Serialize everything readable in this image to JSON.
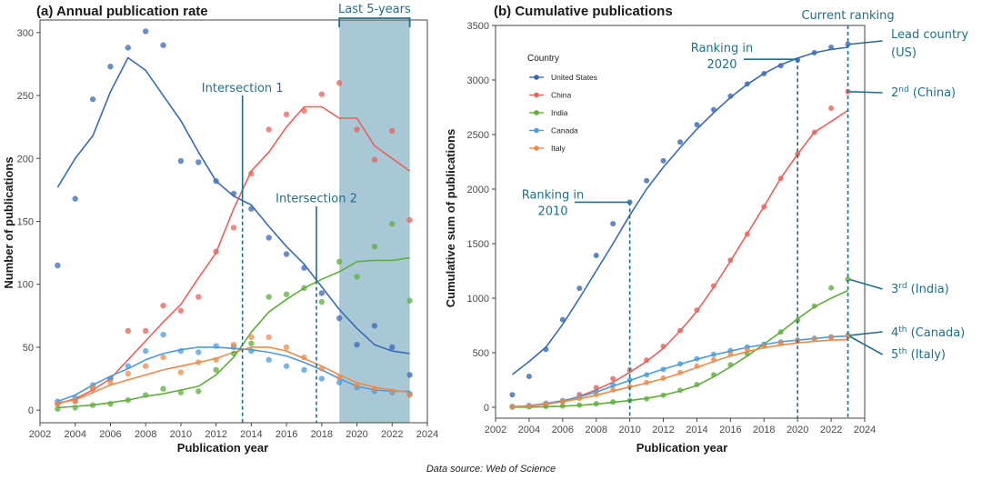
{
  "source": "Data source: Web of Science",
  "colors": {
    "United States": "#3a68b8",
    "China": "#e8605a",
    "India": "#5fae3a",
    "Canada": "#4a9be0",
    "Italy": "#ee8a48",
    "annotation": "#1f6f8b",
    "shade": "#a9c8d6"
  },
  "chart_data": [
    {
      "type": "scatter",
      "title": "(a) Annual publication rate",
      "xlabel": "Publication year",
      "ylabel": "Number of publications",
      "xlim": [
        2002,
        2024
      ],
      "ylim": [
        -10,
        310
      ],
      "xticks": [
        2002,
        2004,
        2006,
        2008,
        2010,
        2012,
        2014,
        2016,
        2018,
        2020,
        2022,
        2024
      ],
      "yticks": [
        0,
        50,
        100,
        150,
        200,
        250,
        300
      ],
      "grid": false,
      "x": [
        2003,
        2004,
        2005,
        2006,
        2007,
        2008,
        2009,
        2010,
        2011,
        2012,
        2013,
        2014,
        2015,
        2016,
        2017,
        2018,
        2019,
        2020,
        2021,
        2022,
        2023
      ],
      "series": [
        {
          "name": "United States",
          "points": [
            115,
            168,
            247,
            273,
            288,
            301,
            290,
            198,
            197,
            182,
            172,
            160,
            137,
            124,
            113,
            93,
            73,
            52,
            67,
            50,
            28
          ],
          "trend": [
            177,
            200,
            218,
            253,
            280,
            270,
            250,
            230,
            205,
            182,
            170,
            163,
            146,
            130,
            116,
            98,
            80,
            65,
            52,
            47,
            45
          ]
        },
        {
          "name": "China",
          "points": [
            5,
            7,
            17,
            25,
            63,
            63,
            83,
            79,
            90,
            126,
            145,
            188,
            223,
            235,
            238,
            251,
            260,
            223,
            199,
            222,
            151
          ]
        },
        {
          "name": "India",
          "points": [
            1,
            2,
            4,
            5,
            8,
            12,
            17,
            14,
            15,
            32,
            45,
            53,
            90,
            92,
            97,
            86,
            118,
            106,
            130,
            148,
            87
          ]
        },
        {
          "name": "Canada",
          "points": [
            7,
            10,
            20,
            25,
            35,
            47,
            60,
            47,
            46,
            51,
            50,
            47,
            40,
            35,
            32,
            25,
            22,
            18,
            15,
            14,
            13
          ]
        },
        {
          "name": "Italy",
          "points": [
            5,
            8,
            18,
            22,
            29,
            35,
            42,
            30,
            38,
            40,
            52,
            58,
            58,
            50,
            42,
            33,
            26,
            20,
            17,
            15,
            12
          ]
        }
      ],
      "trends": {
        "China": [
          5,
          9,
          16,
          25,
          40,
          55,
          70,
          84,
          105,
          125,
          160,
          190,
          205,
          225,
          241,
          241,
          232,
          232,
          210,
          200,
          190
        ],
        "India": [
          2,
          3,
          4,
          6,
          8,
          11,
          13,
          16,
          19,
          28,
          42,
          62,
          78,
          88,
          97,
          104,
          110,
          118,
          119,
          119,
          121
        ],
        "Canada": [
          7,
          12,
          20,
          27,
          33,
          40,
          45,
          48,
          50,
          50,
          49,
          48,
          46,
          43,
          38,
          32,
          25,
          19,
          16,
          15,
          15
        ],
        "Italy": [
          6,
          8,
          14,
          20,
          24,
          28,
          32,
          35,
          38,
          41,
          46,
          50,
          50,
          47,
          41,
          35,
          28,
          22,
          18,
          16,
          14
        ]
      },
      "annotations": {
        "intersection1": {
          "text": "Intersection 1",
          "x": 2013.5
        },
        "intersection2": {
          "text": "Intersection 2",
          "x": 2017.7
        },
        "last5": {
          "text": "Last 5-years",
          "from": 2019,
          "to": 2023
        }
      }
    },
    {
      "type": "line",
      "title": "(b) Cumulative publications",
      "xlabel": "Publication year",
      "ylabel": "Cumulative sum of publications",
      "xlim": [
        2002,
        2024
      ],
      "ylim": [
        -100,
        3500
      ],
      "xticks": [
        2002,
        2004,
        2006,
        2008,
        2010,
        2012,
        2014,
        2016,
        2018,
        2020,
        2022,
        2024
      ],
      "yticks": [
        0,
        500,
        1000,
        1500,
        2000,
        2500,
        3000,
        3500
      ],
      "grid": false,
      "legend": {
        "title": "Country",
        "placement": "top-left",
        "entries": [
          "United States",
          "China",
          "India",
          "Canada",
          "Italy"
        ]
      },
      "x": [
        2003,
        2004,
        2005,
        2006,
        2007,
        2008,
        2009,
        2010,
        2011,
        2012,
        2013,
        2014,
        2015,
        2016,
        2017,
        2018,
        2019,
        2020,
        2021,
        2022,
        2023
      ],
      "series": [
        {
          "name": "United States",
          "points": [
            115,
            283,
            530,
            803,
            1091,
            1392,
            1682,
            1880,
            2077,
            2259,
            2431,
            2591,
            2728,
            2852,
            2965,
            3058,
            3131,
            3183,
            3250,
            3300,
            3328
          ],
          "trend": [
            300,
            420,
            550,
            760,
            1000,
            1250,
            1500,
            1760,
            2000,
            2200,
            2380,
            2550,
            2700,
            2840,
            2960,
            3060,
            3140,
            3200,
            3250,
            3280,
            3300
          ]
        },
        {
          "name": "China",
          "points": [
            5,
            12,
            29,
            54,
            117,
            180,
            263,
            342,
            432,
            558,
            703,
            891,
            1114,
            1349,
            1587,
            1838,
            2098,
            2321,
            2520,
            2742,
            2893
          ],
          "trend": [
            5,
            12,
            28,
            55,
            100,
            160,
            230,
            320,
            420,
            540,
            700,
            880,
            1100,
            1340,
            1590,
            1840,
            2100,
            2320,
            2520,
            2620,
            2720
          ]
        },
        {
          "name": "India",
          "points": [
            1,
            3,
            7,
            12,
            20,
            32,
            49,
            63,
            78,
            110,
            155,
            208,
            298,
            390,
            487,
            573,
            691,
            797,
            927,
            1095,
            1172
          ],
          "trend": [
            0,
            2,
            5,
            10,
            18,
            30,
            45,
            62,
            82,
            110,
            150,
            200,
            280,
            370,
            470,
            580,
            690,
            810,
            920,
            1000,
            1070
          ]
        },
        {
          "name": "Canada",
          "points": [
            7,
            17,
            37,
            62,
            97,
            144,
            204,
            251,
            297,
            348,
            398,
            445,
            485,
            520,
            552,
            577,
            599,
            617,
            632,
            646,
            659
          ],
          "trend": [
            5,
            15,
            35,
            60,
            95,
            140,
            195,
            245,
            300,
            350,
            395,
            440,
            480,
            515,
            550,
            575,
            600,
            615,
            630,
            645,
            655
          ]
        },
        {
          "name": "Italy",
          "points": [
            5,
            13,
            31,
            53,
            82,
            117,
            159,
            189,
            227,
            267,
            319,
            377,
            435,
            485,
            527,
            560,
            586,
            606,
            623,
            638,
            650
          ],
          "trend": [
            5,
            12,
            28,
            50,
            78,
            110,
            150,
            185,
            222,
            262,
            310,
            365,
            420,
            470,
            510,
            545,
            570,
            590,
            605,
            615,
            620
          ]
        }
      ],
      "annotations": {
        "ranking2010": {
          "line1": "Ranking in",
          "line2": "2010",
          "x": 2010
        },
        "ranking2020": {
          "line1": "Ranking in",
          "line2": "2020",
          "x": 2020
        },
        "current": {
          "text": "Current ranking",
          "x": 2023
        },
        "lead": {
          "line1": "Lead country",
          "line2": "(US)"
        },
        "second": {
          "sup": "nd",
          "pre": "2",
          "post": " (China)"
        },
        "third": {
          "sup": "rd",
          "pre": "3",
          "post": " (India)"
        },
        "fourth": {
          "sup": "th",
          "pre": "4",
          "post": " (Canada)"
        },
        "fifth": {
          "sup": "th",
          "pre": "5",
          "post": " (Italy)"
        }
      }
    }
  ]
}
